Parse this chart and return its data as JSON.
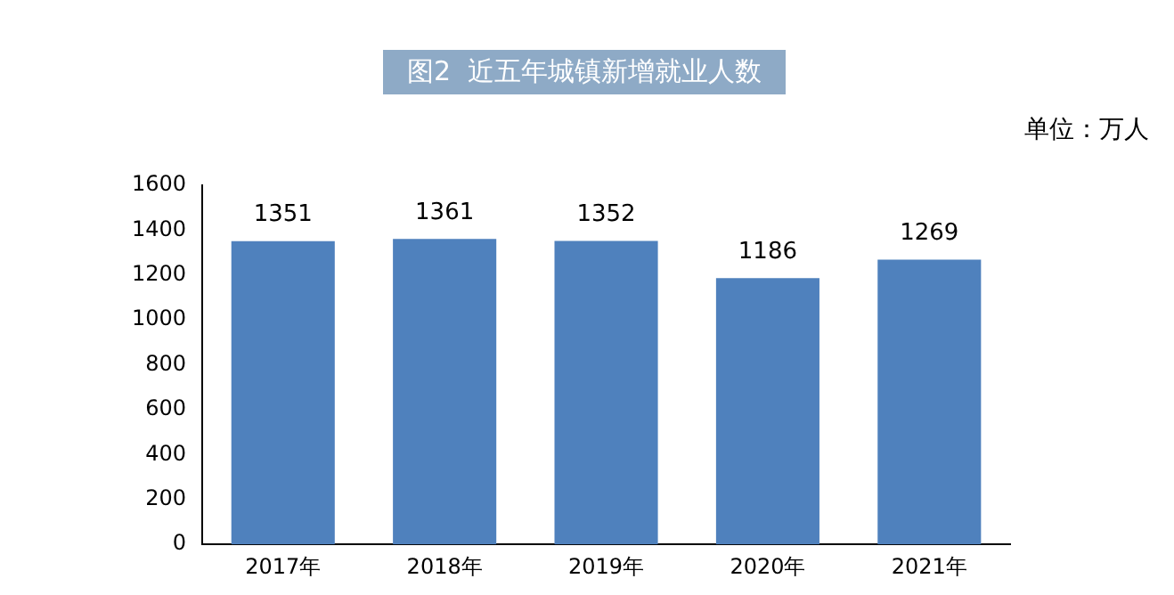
{
  "chart_data": {
    "type": "bar",
    "title": "图2  近五年城镇新增就业人数",
    "annotations": [
      "单位：万人"
    ],
    "categories": [
      "2017年",
      "2018年",
      "2019年",
      "2020年",
      "2021年"
    ],
    "values": [
      1351,
      1361,
      1352,
      1186,
      1269
    ],
    "color": "#4f81bd",
    "ylim": [
      0,
      1600
    ],
    "yticks": [
      0,
      200,
      400,
      600,
      800,
      1000,
      1200,
      1400,
      1600
    ],
    "grid": false,
    "legend": false,
    "data_labels": true
  }
}
